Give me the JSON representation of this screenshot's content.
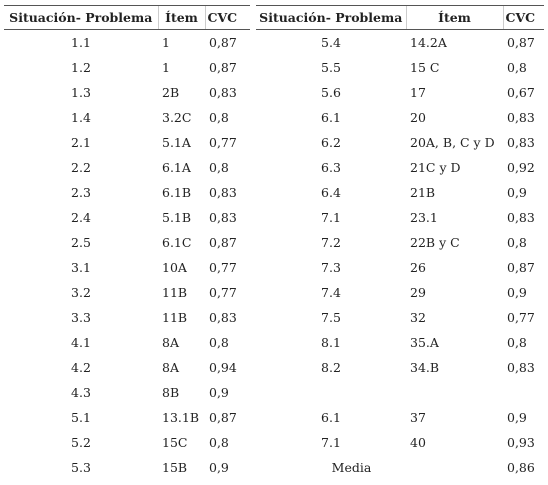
{
  "left_table": {
    "headers": [
      "Situación- Problema",
      "Ítem",
      "CVC"
    ],
    "rows": [
      [
        "1.1",
        "1",
        "0,87"
      ],
      [
        "1.2",
        "1",
        "0,87"
      ],
      [
        "1.3",
        "2B",
        "0,83"
      ],
      [
        "1.4",
        "3.2C",
        "0,8"
      ],
      [
        "2.1",
        "5.1A",
        "0,77"
      ],
      [
        "2.2",
        "6.1A",
        "0,8"
      ],
      [
        "2.3",
        "6.1B",
        "0,83"
      ],
      [
        "2.4",
        "5.1B",
        "0,83"
      ],
      [
        "2.5",
        "6.1C",
        "0,87"
      ],
      [
        "3.1",
        "10A",
        "0,77"
      ],
      [
        "3.2",
        "11B",
        "0,77"
      ],
      [
        "3.3",
        "11B",
        "0,83"
      ],
      [
        "4.1",
        "8A",
        "0,8"
      ],
      [
        "4.2",
        "8A",
        "0,94"
      ],
      [
        "4.3",
        "8B",
        "0,9"
      ],
      [
        "5.1",
        "13.1B",
        "0,87"
      ],
      [
        "5.2",
        "15C",
        "0,8"
      ],
      [
        "5.3",
        "15B",
        "0,9"
      ]
    ]
  },
  "right_table": {
    "headers": [
      "Situación- Problema",
      "Ítem",
      "CVC"
    ],
    "rows": [
      [
        "5.4",
        "14.2A",
        "0,87"
      ],
      [
        "5.5",
        "15 C",
        "0,8"
      ],
      [
        "5.6",
        "17",
        "0,67"
      ],
      [
        "6.1",
        "20",
        "0,83"
      ],
      [
        "6.2",
        "20A, B, C y D",
        "0,83"
      ],
      [
        "6.3",
        "21C y D",
        "0,92"
      ],
      [
        "6.4",
        "21B",
        "0,9"
      ],
      [
        "7.1",
        "23.1",
        "0,83"
      ],
      [
        "7.2",
        "22B y C",
        "0,8"
      ],
      [
        "7.3",
        "26",
        "0,87"
      ],
      [
        "7.4",
        "29",
        "0,9"
      ],
      [
        "7.5",
        "32",
        "0,77"
      ],
      [
        "8.1",
        "35.A",
        "0,8"
      ],
      [
        "8.2",
        "34.B",
        "0,83"
      ]
    ],
    "rows_after_gap": [
      [
        "6.1",
        "37",
        "0,9"
      ],
      [
        "7.1",
        "40",
        "0,93"
      ]
    ],
    "footer": {
      "label": "Media",
      "value": "0,86"
    }
  }
}
